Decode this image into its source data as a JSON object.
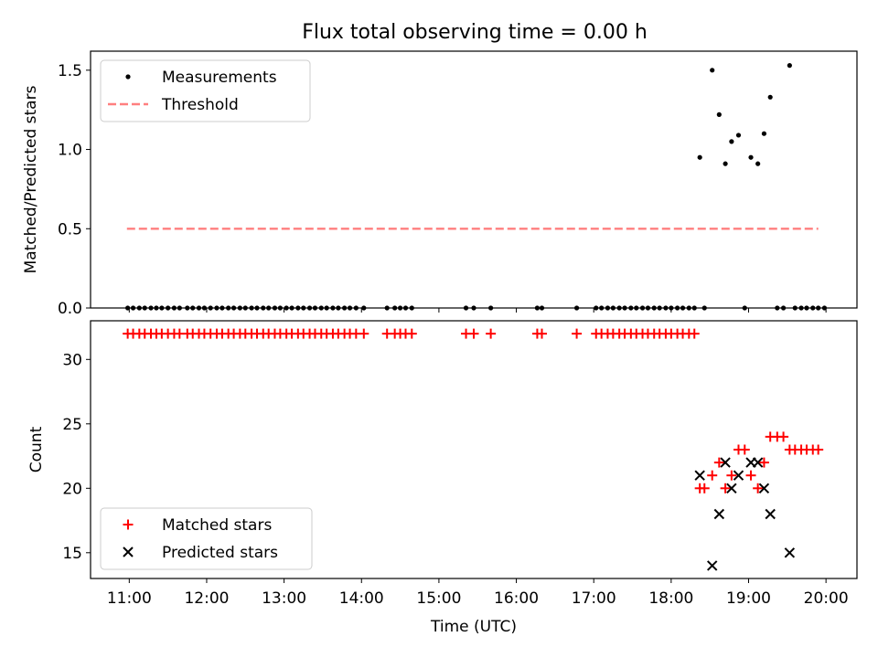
{
  "figure": {
    "title": "Flux total observing time = 0.00 h"
  },
  "chart_data": [
    {
      "type": "scatter",
      "panel": "top",
      "ylabel": "Matched/Predicted stars",
      "xlabel": "",
      "xlim": [
        10.5,
        20.4
      ],
      "ylim": [
        0.0,
        1.62
      ],
      "xticks": [
        11,
        12,
        13,
        14,
        15,
        16,
        17,
        18,
        19,
        20
      ],
      "yticks": [
        0.0,
        0.5,
        1.0,
        1.5
      ],
      "ytick_labels": [
        "0.0",
        "0.5",
        "1.0",
        "1.5"
      ],
      "grid": false,
      "legend_position": "upper-left",
      "series": [
        {
          "name": "Measurements",
          "kind": "points",
          "color": "#000000",
          "x": [
            10.98,
            11.05,
            11.13,
            11.2,
            11.28,
            11.35,
            11.42,
            11.5,
            11.58,
            11.65,
            11.75,
            11.82,
            11.9,
            11.97,
            12.05,
            12.13,
            12.2,
            12.28,
            12.35,
            12.43,
            12.5,
            12.58,
            12.65,
            12.73,
            12.8,
            12.88,
            12.95,
            13.03,
            13.1,
            13.18,
            13.25,
            13.33,
            13.4,
            13.48,
            13.55,
            13.63,
            13.7,
            13.78,
            13.85,
            13.93,
            14.03,
            14.33,
            14.43,
            14.5,
            14.57,
            14.65,
            15.35,
            15.45,
            15.67,
            16.27,
            16.33,
            16.78,
            17.03,
            17.1,
            17.18,
            17.25,
            17.33,
            17.4,
            17.48,
            17.55,
            17.63,
            17.7,
            17.78,
            17.85,
            17.93,
            18.0,
            18.08,
            18.15,
            18.23,
            18.3,
            18.43,
            18.95,
            19.37,
            19.45,
            19.6,
            19.68,
            19.75,
            19.83,
            19.9,
            19.98,
            18.37,
            18.53,
            18.62,
            18.7,
            18.78,
            18.87,
            19.03,
            19.12,
            19.2,
            19.28,
            19.53
          ],
          "y": [
            0,
            0,
            0,
            0,
            0,
            0,
            0,
            0,
            0,
            0,
            0,
            0,
            0,
            0,
            0,
            0,
            0,
            0,
            0,
            0,
            0,
            0,
            0,
            0,
            0,
            0,
            0,
            0,
            0,
            0,
            0,
            0,
            0,
            0,
            0,
            0,
            0,
            0,
            0,
            0,
            0,
            0,
            0,
            0,
            0,
            0,
            0,
            0,
            0,
            0,
            0,
            0,
            0,
            0,
            0,
            0,
            0,
            0,
            0,
            0,
            0,
            0,
            0,
            0,
            0,
            0,
            0,
            0,
            0,
            0,
            0,
            0,
            0,
            0,
            0,
            0,
            0,
            0,
            0,
            0,
            0.95,
            1.5,
            1.22,
            0.91,
            1.05,
            1.09,
            0.95,
            0.91,
            1.1,
            1.33,
            1.53
          ]
        },
        {
          "name": "Threshold",
          "kind": "dashed-line",
          "color": "#ff7f7f",
          "x": [
            10.97,
            19.9
          ],
          "y": [
            0.5,
            0.5
          ]
        }
      ]
    },
    {
      "type": "scatter",
      "panel": "bottom",
      "ylabel": "Count",
      "xlabel": "Time (UTC)",
      "xlim": [
        10.5,
        20.4
      ],
      "ylim": [
        13.0,
        33.0
      ],
      "xticks": [
        11,
        12,
        13,
        14,
        15,
        16,
        17,
        18,
        19,
        20
      ],
      "xtick_labels": [
        "11:00",
        "12:00",
        "13:00",
        "14:00",
        "15:00",
        "16:00",
        "17:00",
        "18:00",
        "19:00",
        "20:00"
      ],
      "yticks": [
        15,
        20,
        25,
        30
      ],
      "ytick_labels": [
        "15",
        "20",
        "25",
        "30"
      ],
      "grid": false,
      "legend_position": "lower-left",
      "series": [
        {
          "name": "Matched stars",
          "kind": "plus",
          "color": "#ff0000",
          "x": [
            10.98,
            11.05,
            11.13,
            11.2,
            11.28,
            11.35,
            11.42,
            11.5,
            11.58,
            11.65,
            11.75,
            11.82,
            11.9,
            11.97,
            12.05,
            12.13,
            12.2,
            12.28,
            12.35,
            12.43,
            12.5,
            12.58,
            12.65,
            12.73,
            12.8,
            12.88,
            12.95,
            13.03,
            13.1,
            13.18,
            13.25,
            13.33,
            13.4,
            13.48,
            13.55,
            13.63,
            13.7,
            13.78,
            13.85,
            13.93,
            14.03,
            14.33,
            14.43,
            14.5,
            14.57,
            14.65,
            15.35,
            15.45,
            15.67,
            16.27,
            16.33,
            16.78,
            17.03,
            17.1,
            17.18,
            17.25,
            17.33,
            17.4,
            17.48,
            17.55,
            17.63,
            17.7,
            17.78,
            17.85,
            17.93,
            18.0,
            18.08,
            18.15,
            18.23,
            18.3,
            18.37,
            18.43,
            18.53,
            18.62,
            18.7,
            18.78,
            18.87,
            18.95,
            19.03,
            19.12,
            19.2,
            19.28,
            19.37,
            19.45,
            19.53,
            19.6,
            19.68,
            19.75,
            19.83,
            19.9
          ],
          "y": [
            32,
            32,
            32,
            32,
            32,
            32,
            32,
            32,
            32,
            32,
            32,
            32,
            32,
            32,
            32,
            32,
            32,
            32,
            32,
            32,
            32,
            32,
            32,
            32,
            32,
            32,
            32,
            32,
            32,
            32,
            32,
            32,
            32,
            32,
            32,
            32,
            32,
            32,
            32,
            32,
            32,
            32,
            32,
            32,
            32,
            32,
            32,
            32,
            32,
            32,
            32,
            32,
            32,
            32,
            32,
            32,
            32,
            32,
            32,
            32,
            32,
            32,
            32,
            32,
            32,
            32,
            32,
            32,
            32,
            32,
            20,
            20,
            21,
            22,
            20,
            21,
            23,
            23,
            21,
            20,
            22,
            24,
            24,
            24,
            23,
            23,
            23,
            23,
            23,
            23
          ]
        },
        {
          "name": "Predicted stars",
          "kind": "x",
          "color": "#000000",
          "x": [
            18.37,
            18.53,
            18.62,
            18.7,
            18.78,
            18.87,
            19.03,
            19.12,
            19.2,
            19.28,
            19.53
          ],
          "y": [
            21,
            14,
            18,
            22,
            20,
            21,
            22,
            22,
            20,
            18,
            15
          ]
        }
      ]
    }
  ]
}
